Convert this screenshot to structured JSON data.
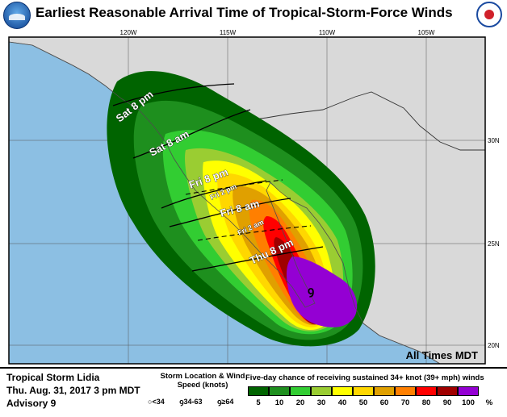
{
  "title": "Earliest Reasonable Arrival Time of Tropical-Storm-Force Winds",
  "logos": {
    "left": "NOAA",
    "right": "NATIONAL WEATHER SERVICE"
  },
  "map": {
    "lon_labels": [
      "120W",
      "115W",
      "110W",
      "105W"
    ],
    "lat_labels": [
      "30N",
      "25N",
      "20N"
    ],
    "note": "All Times MDT",
    "time_labels": [
      "Sat 8 pm",
      "Sat 8 am",
      "Fri 8 pm",
      "Fri 2 pm",
      "Fri 8 am",
      "Fri 2 am",
      "Thu 8 pm"
    ],
    "time_label_parts": {
      "sat8pm": {
        "day": "Sat",
        "hr": "8",
        "ap": "pm"
      },
      "sat8am": {
        "day": "Sat",
        "hr": "8",
        "ap": "am"
      },
      "fri8pm": {
        "day": "Fri",
        "hr": "8",
        "ap": "pm"
      },
      "fri2pm": {
        "day": "Fri",
        "hr": "2",
        "ap": "pm"
      },
      "fri8am": {
        "day": "Fri",
        "hr": "8",
        "ap": "am"
      },
      "fri2am": {
        "day": "Fri",
        "hr": "2",
        "ap": "am"
      },
      "thu8pm": {
        "day": "Thu",
        "hr": "8",
        "ap": "pm"
      }
    },
    "colors": {
      "land": "#d9d9d9",
      "water": "#8cbfe3",
      "border": "#000000"
    }
  },
  "legend": {
    "storm_name": "Tropical Storm Lidia",
    "issued": "Thu. Aug. 31, 2017  3 pm MDT",
    "advisory": "Advisory 9",
    "location_title": "Storm Location & Wind Speed (knots)",
    "symbols": [
      "<34",
      "34-63",
      "≥64"
    ],
    "chance_title": "Five-day chance of receiving sustained 34+ knot (39+ mph) winds",
    "scale": [
      {
        "label": "5",
        "color": "#006400"
      },
      {
        "label": "10",
        "color": "#1e8f1e"
      },
      {
        "label": "20",
        "color": "#32cd32"
      },
      {
        "label": "30",
        "color": "#9acd32"
      },
      {
        "label": "40",
        "color": "#ffff00"
      },
      {
        "label": "50",
        "color": "#ffd700"
      },
      {
        "label": "60",
        "color": "#e0a000"
      },
      {
        "label": "70",
        "color": "#ff7f00"
      },
      {
        "label": "80",
        "color": "#ff0000"
      },
      {
        "label": "90",
        "color": "#a00000"
      },
      {
        "label": "100",
        "color": "#9400d3"
      }
    ],
    "unit": "%"
  }
}
